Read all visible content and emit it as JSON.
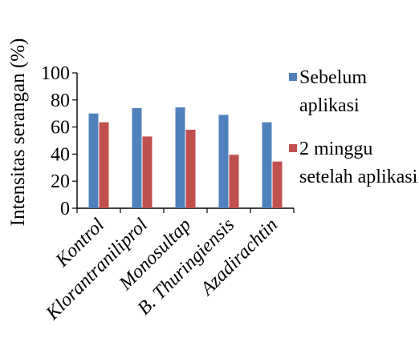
{
  "chart_data": {
    "type": "bar",
    "categories": [
      "Kontrol",
      "Klorantraniliprol",
      "Monosultap",
      "B. Thuringiensis",
      "Azadirachtin"
    ],
    "series": [
      {
        "name": "Sebelum aplikasi",
        "legend_lines": [
          "Sebelum",
          "aplikasi"
        ],
        "color": "#4f81bd",
        "values": [
          70,
          74,
          74.5,
          69,
          63.5
        ]
      },
      {
        "name": "2 minggu setelah aplikasi",
        "legend_lines": [
          "2 minggu",
          "setelah aplikasi"
        ],
        "color": "#c0504d",
        "values": [
          63.5,
          53,
          58,
          39.5,
          34.5
        ]
      }
    ],
    "ylabel": "Intensitas serangan (%)",
    "xlabel": "",
    "title": "",
    "ylim": [
      0,
      100
    ],
    "yticks": [
      0,
      20,
      40,
      60,
      80,
      100
    ],
    "grid": false,
    "legend_position": "right"
  }
}
